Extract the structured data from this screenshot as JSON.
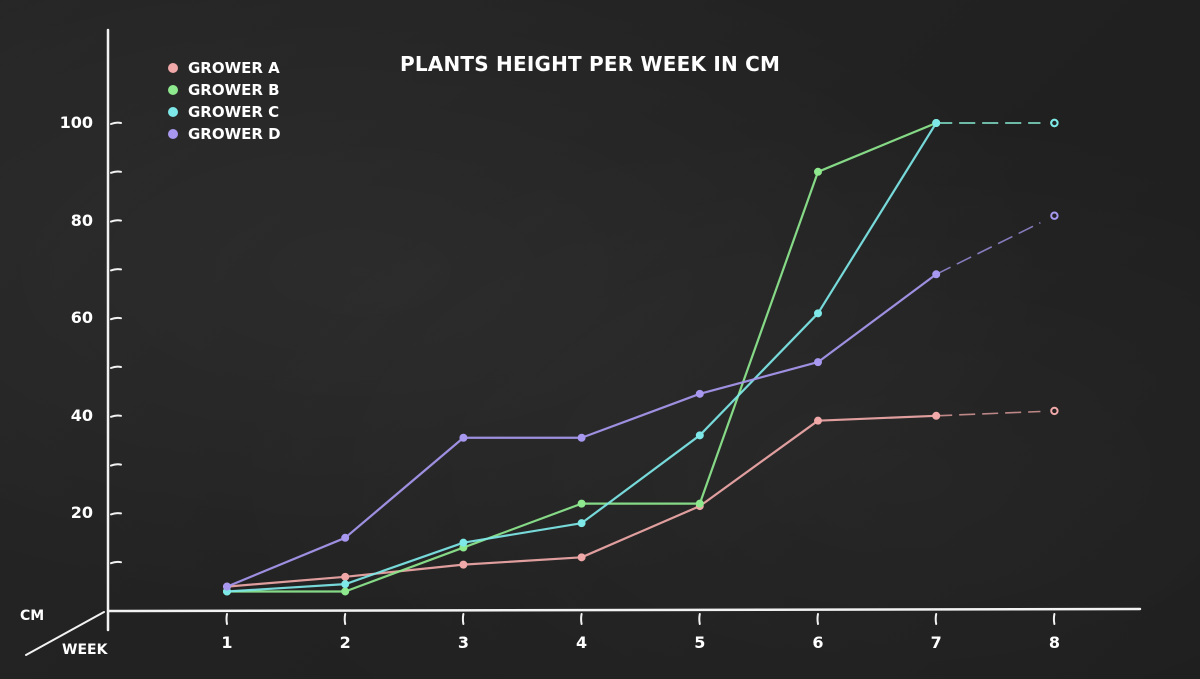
{
  "chart_data": {
    "type": "line",
    "title": "PLANTS HEIGHT PER WEEK IN CM",
    "xlabel": "WEEK",
    "ylabel": "CM",
    "x": [
      1,
      2,
      3,
      4,
      5,
      6,
      7,
      8
    ],
    "x_tick_labels": [
      "1",
      "2",
      "3",
      "4",
      "5",
      "6",
      "7",
      "8"
    ],
    "y_tick_labels": [
      "20",
      "40",
      "60",
      "80",
      "100"
    ],
    "ylim": [
      0,
      110
    ],
    "grid": false,
    "legend_position": "top-left",
    "series": [
      {
        "name": "GROWER A",
        "color": "#f0a8a8",
        "values": [
          5,
          7,
          9.5,
          11,
          21.5,
          39,
          40,
          41
        ]
      },
      {
        "name": "GROWER B",
        "color": "#8ee88e",
        "values": [
          4,
          4,
          13,
          22,
          22,
          90,
          100,
          100
        ]
      },
      {
        "name": "GROWER C",
        "color": "#7ee8e8",
        "values": [
          4,
          5.5,
          14,
          18,
          36,
          61,
          100,
          100
        ]
      },
      {
        "name": "GROWER D",
        "color": "#a898f0",
        "values": [
          5,
          15,
          35.5,
          35.5,
          44.5,
          51,
          69,
          81
        ]
      }
    ],
    "notes": "Segment from week 7 to week 8 drawn dashed for each series"
  },
  "legend": {
    "items": [
      {
        "label": "GROWER A",
        "color": "#f0a8a8"
      },
      {
        "label": "GROWER B",
        "color": "#8ee88e"
      },
      {
        "label": "GROWER C",
        "color": "#7ee8e8"
      },
      {
        "label": "GROWER D",
        "color": "#a898f0"
      }
    ]
  },
  "axes": {
    "y_unit": "CM",
    "x_unit": "WEEK"
  }
}
